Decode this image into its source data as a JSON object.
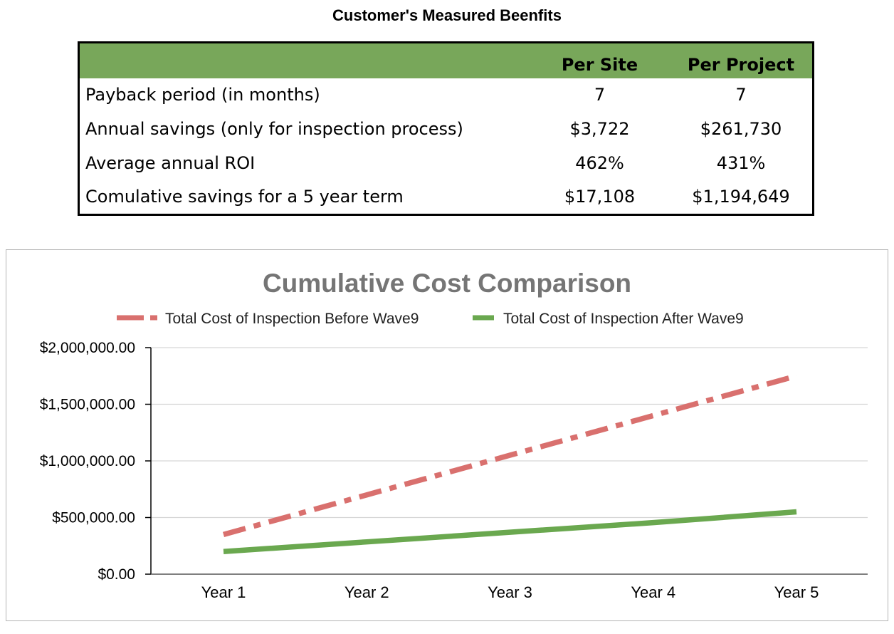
{
  "page": {
    "title": "Customer's Measured Beenfits"
  },
  "table": {
    "headers": [
      "",
      "Per Site",
      "Per Project"
    ],
    "rows": [
      {
        "label": "Payback period (in months)",
        "per_site": "7",
        "per_project": "7"
      },
      {
        "label": "Annual savings (only for inspection process)",
        "per_site": "$3,722",
        "per_project": "$261,730"
      },
      {
        "label": "Average annual ROI",
        "per_site": "462%",
        "per_project": "431%"
      },
      {
        "label": "Comulative savings for a 5 year term",
        "per_site": "$17,108",
        "per_project": "$1,194,649"
      }
    ],
    "header_color": "#78a75a"
  },
  "chart_data": {
    "type": "line",
    "title": "Cumulative Cost Comparison",
    "categories": [
      "Year 1",
      "Year 2",
      "Year 3",
      "Year 4",
      "Year 5"
    ],
    "series": [
      {
        "name": "Total Cost of Inspection Before Wave9",
        "values": [
          350000,
          700000,
          1050000,
          1400000,
          1750000
        ],
        "color": "#d9706e",
        "style": "dash-dot"
      },
      {
        "name": "Total Cost of Inspection After Wave9",
        "values": [
          200000,
          285000,
          370000,
          455000,
          550000
        ],
        "color": "#6aa84f",
        "style": "solid"
      }
    ],
    "ylim": [
      0,
      2000000
    ],
    "yticks": [
      0,
      500000,
      1000000,
      1500000,
      2000000
    ],
    "ytick_labels": [
      "$0.00",
      "$500,000.00",
      "$1,000,000.00",
      "$1,500,000.00",
      "$2,000,000.00"
    ],
    "xlabel": "",
    "ylabel": "",
    "grid": true,
    "legend_position": "top",
    "title_color": "#757575"
  }
}
